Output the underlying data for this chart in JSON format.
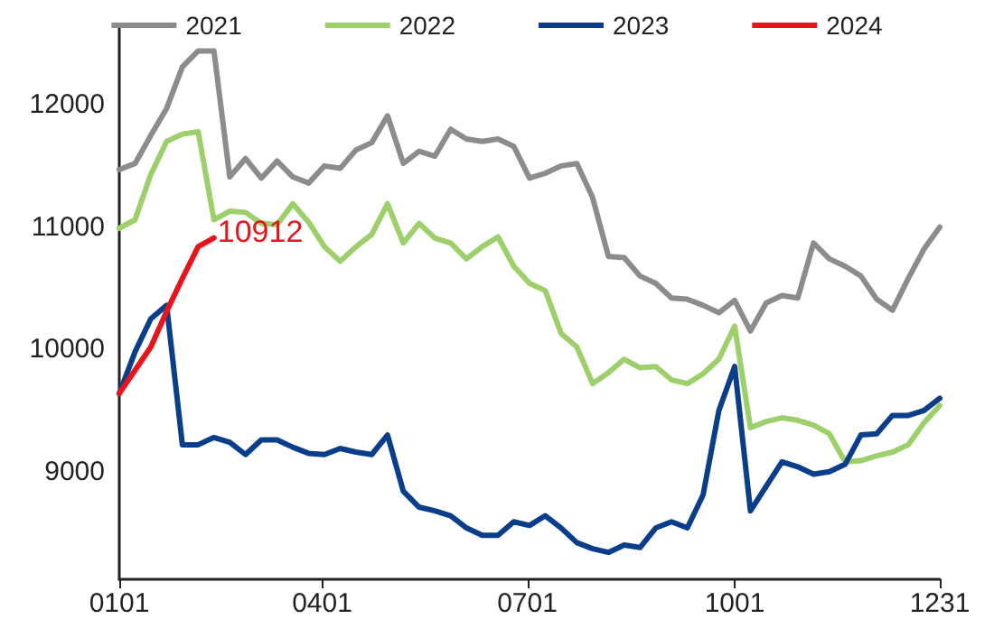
{
  "chart_data": {
    "type": "line",
    "x": [
      "--01-01",
      "--01-08",
      "--01-15",
      "--01-22",
      "--01-29",
      "--02-05",
      "--02-12",
      "--02-19",
      "--02-26",
      "--03-05",
      "--03-12",
      "--03-19",
      "--03-26",
      "--04-02",
      "--04-09",
      "--04-16",
      "--04-23",
      "--04-30",
      "--05-07",
      "--05-14",
      "--05-21",
      "--05-28",
      "--06-04",
      "--06-11",
      "--06-18",
      "--06-25",
      "--07-02",
      "--07-09",
      "--07-16",
      "--07-23",
      "--07-30",
      "--08-06",
      "--08-13",
      "--08-20",
      "--08-27",
      "--09-03",
      "--09-10",
      "--09-17",
      "--09-24",
      "--10-01",
      "--10-08",
      "--10-15",
      "--10-22",
      "--10-29",
      "--11-05",
      "--11-12",
      "--11-19",
      "--11-26",
      "--12-03",
      "--12-10",
      "--12-17",
      "--12-24",
      "--12-31"
    ],
    "xlim": [
      "--01-01",
      "--12-31"
    ],
    "xticks": [
      {
        "value": "--01-01",
        "label": "0101"
      },
      {
        "value": "--04-01",
        "label": "0401"
      },
      {
        "value": "--07-01",
        "label": "0701"
      },
      {
        "value": "--10-01",
        "label": "1001"
      },
      {
        "value": "--12-31",
        "label": "1231"
      }
    ],
    "ylim": [
      8120,
      12650
    ],
    "yticks": [
      9000,
      10000,
      11000,
      12000
    ],
    "legend": "top",
    "grid": false,
    "marker": "none",
    "line_style": "solid",
    "series": [
      {
        "name": "2021",
        "color": "#8c8c8c",
        "values": [
          11470,
          11520,
          11750,
          11970,
          12310,
          12440,
          12440,
          11410,
          11560,
          11400,
          11540,
          11410,
          11360,
          11500,
          11480,
          11630,
          11690,
          11910,
          11520,
          11620,
          11580,
          11800,
          11720,
          11700,
          11720,
          11660,
          11400,
          11440,
          11500,
          11520,
          11240,
          10760,
          10750,
          10600,
          10540,
          10420,
          10410,
          10360,
          10300,
          10400,
          10150,
          10380,
          10440,
          10420,
          10870,
          10740,
          10680,
          10600,
          10410,
          10320,
          10580,
          10820,
          11000
        ]
      },
      {
        "name": "2022",
        "color": "#9dcf6b",
        "values": [
          10990,
          11060,
          11430,
          11700,
          11760,
          11780,
          11060,
          11130,
          11120,
          11030,
          11020,
          11190,
          11040,
          10840,
          10720,
          10840,
          10940,
          11190,
          10870,
          11030,
          10910,
          10870,
          10740,
          10840,
          10920,
          10680,
          10540,
          10480,
          10130,
          10020,
          9720,
          9810,
          9920,
          9850,
          9860,
          9750,
          9720,
          9800,
          9920,
          10190,
          9360,
          9410,
          9440,
          9420,
          9380,
          9310,
          9080,
          9090,
          9130,
          9160,
          9220,
          9400,
          9540
        ]
      },
      {
        "name": "2023",
        "color": "#0a3d8a",
        "values": [
          9640,
          9980,
          10250,
          10360,
          9220,
          9220,
          9280,
          9240,
          9140,
          9260,
          9260,
          9200,
          9150,
          9140,
          9190,
          9160,
          9140,
          9300,
          8840,
          8710,
          8680,
          8640,
          8540,
          8480,
          8480,
          8590,
          8560,
          8640,
          8540,
          8420,
          8370,
          8340,
          8400,
          8380,
          8540,
          8590,
          8540,
          8810,
          9500,
          9860,
          8680,
          8880,
          9080,
          9040,
          8980,
          9000,
          9060,
          9300,
          9310,
          9460,
          9460,
          9500,
          9600
        ]
      },
      {
        "name": "2024",
        "color": "#e8141b",
        "x": [
          "--01-01",
          "--01-08",
          "--01-15",
          "--01-22",
          "--01-29",
          "--02-05",
          "--02-12"
        ],
        "values": [
          9640,
          9830,
          10020,
          10310,
          10580,
          10840,
          10912
        ]
      }
    ],
    "annotations": [
      {
        "text": "10912",
        "x": "--02-12",
        "y": 10912
      }
    ]
  }
}
